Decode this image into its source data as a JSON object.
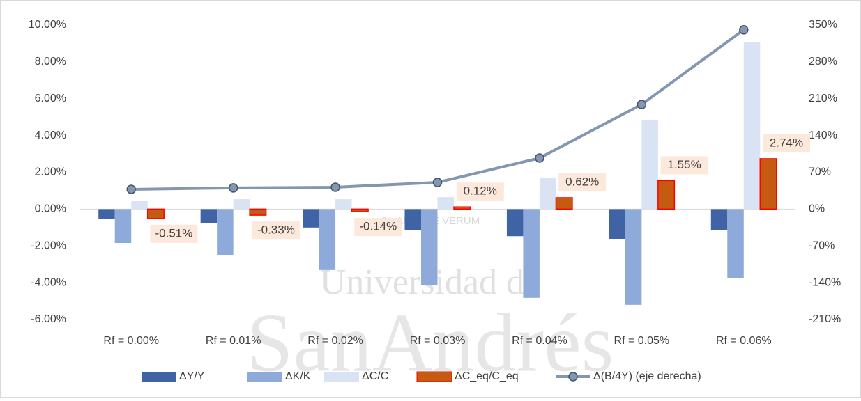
{
  "chart_data": {
    "type": "bar_line",
    "watermark": [
      "QUAERERE VERUM",
      "Universidad de",
      "SanAndrés"
    ],
    "categories": [
      "Rf = 0.00%",
      "Rf = 0.01%",
      "Rf = 0.02%",
      "Rf = 0.03%",
      "Rf = 0.04%",
      "Rf = 0.05%",
      "Rf = 0.06%"
    ],
    "ylim": [
      -6,
      10
    ],
    "yticks": [
      {
        "value": -6,
        "label": "-6.00%"
      },
      {
        "value": -4,
        "label": "-4.00%"
      },
      {
        "value": -2,
        "label": "-2.00%"
      },
      {
        "value": 0,
        "label": "0.00%"
      },
      {
        "value": 2,
        "label": "2.00%"
      },
      {
        "value": 4,
        "label": "4.00%"
      },
      {
        "value": 6,
        "label": "6.00%"
      },
      {
        "value": 8,
        "label": "8.00%"
      },
      {
        "value": 10,
        "label": "10.00%"
      }
    ],
    "y2lim": [
      -210,
      350
    ],
    "y2ticks": [
      {
        "value": -210,
        "label": "-210%"
      },
      {
        "value": -140,
        "label": "-140%"
      },
      {
        "value": -70,
        "label": "-70%"
      },
      {
        "value": 0,
        "label": "0%"
      },
      {
        "value": 70,
        "label": "70%"
      },
      {
        "value": 140,
        "label": "140%"
      },
      {
        "value": 210,
        "label": "210%"
      },
      {
        "value": 280,
        "label": "280%"
      },
      {
        "value": 350,
        "label": "350%"
      }
    ],
    "series": [
      {
        "name": "ΔY/Y",
        "type": "bar",
        "color": "#3f63a5",
        "values": [
          -0.55,
          -0.78,
          -1.0,
          -1.15,
          -1.47,
          -1.62,
          -1.12
        ]
      },
      {
        "name": "ΔK/K",
        "type": "bar",
        "color": "#8eaadb",
        "values": [
          -1.84,
          -2.51,
          -3.31,
          -4.14,
          -4.82,
          -5.2,
          -3.76
        ]
      },
      {
        "name": "ΔC/C",
        "type": "bar",
        "color": "#dae3f3",
        "values": [
          0.47,
          0.54,
          0.54,
          0.65,
          1.7,
          4.82,
          9.05
        ]
      },
      {
        "name": "ΔC_eq/C_eq",
        "type": "bar",
        "color": "#c55a11",
        "values": [
          -0.51,
          -0.33,
          -0.14,
          0.12,
          0.62,
          1.55,
          2.74
        ],
        "value_labels": [
          "-0.51%",
          "-0.33%",
          "-0.14%",
          "0.12%",
          "0.62%",
          "1.55%",
          "2.74%"
        ]
      },
      {
        "name": "Δ(B/4Y) (eje derecha)",
        "type": "line",
        "axis": "y2",
        "color": "#8497b0",
        "values": [
          37.6,
          40.3,
          41.6,
          50.8,
          97.2,
          199,
          341
        ]
      }
    ]
  }
}
